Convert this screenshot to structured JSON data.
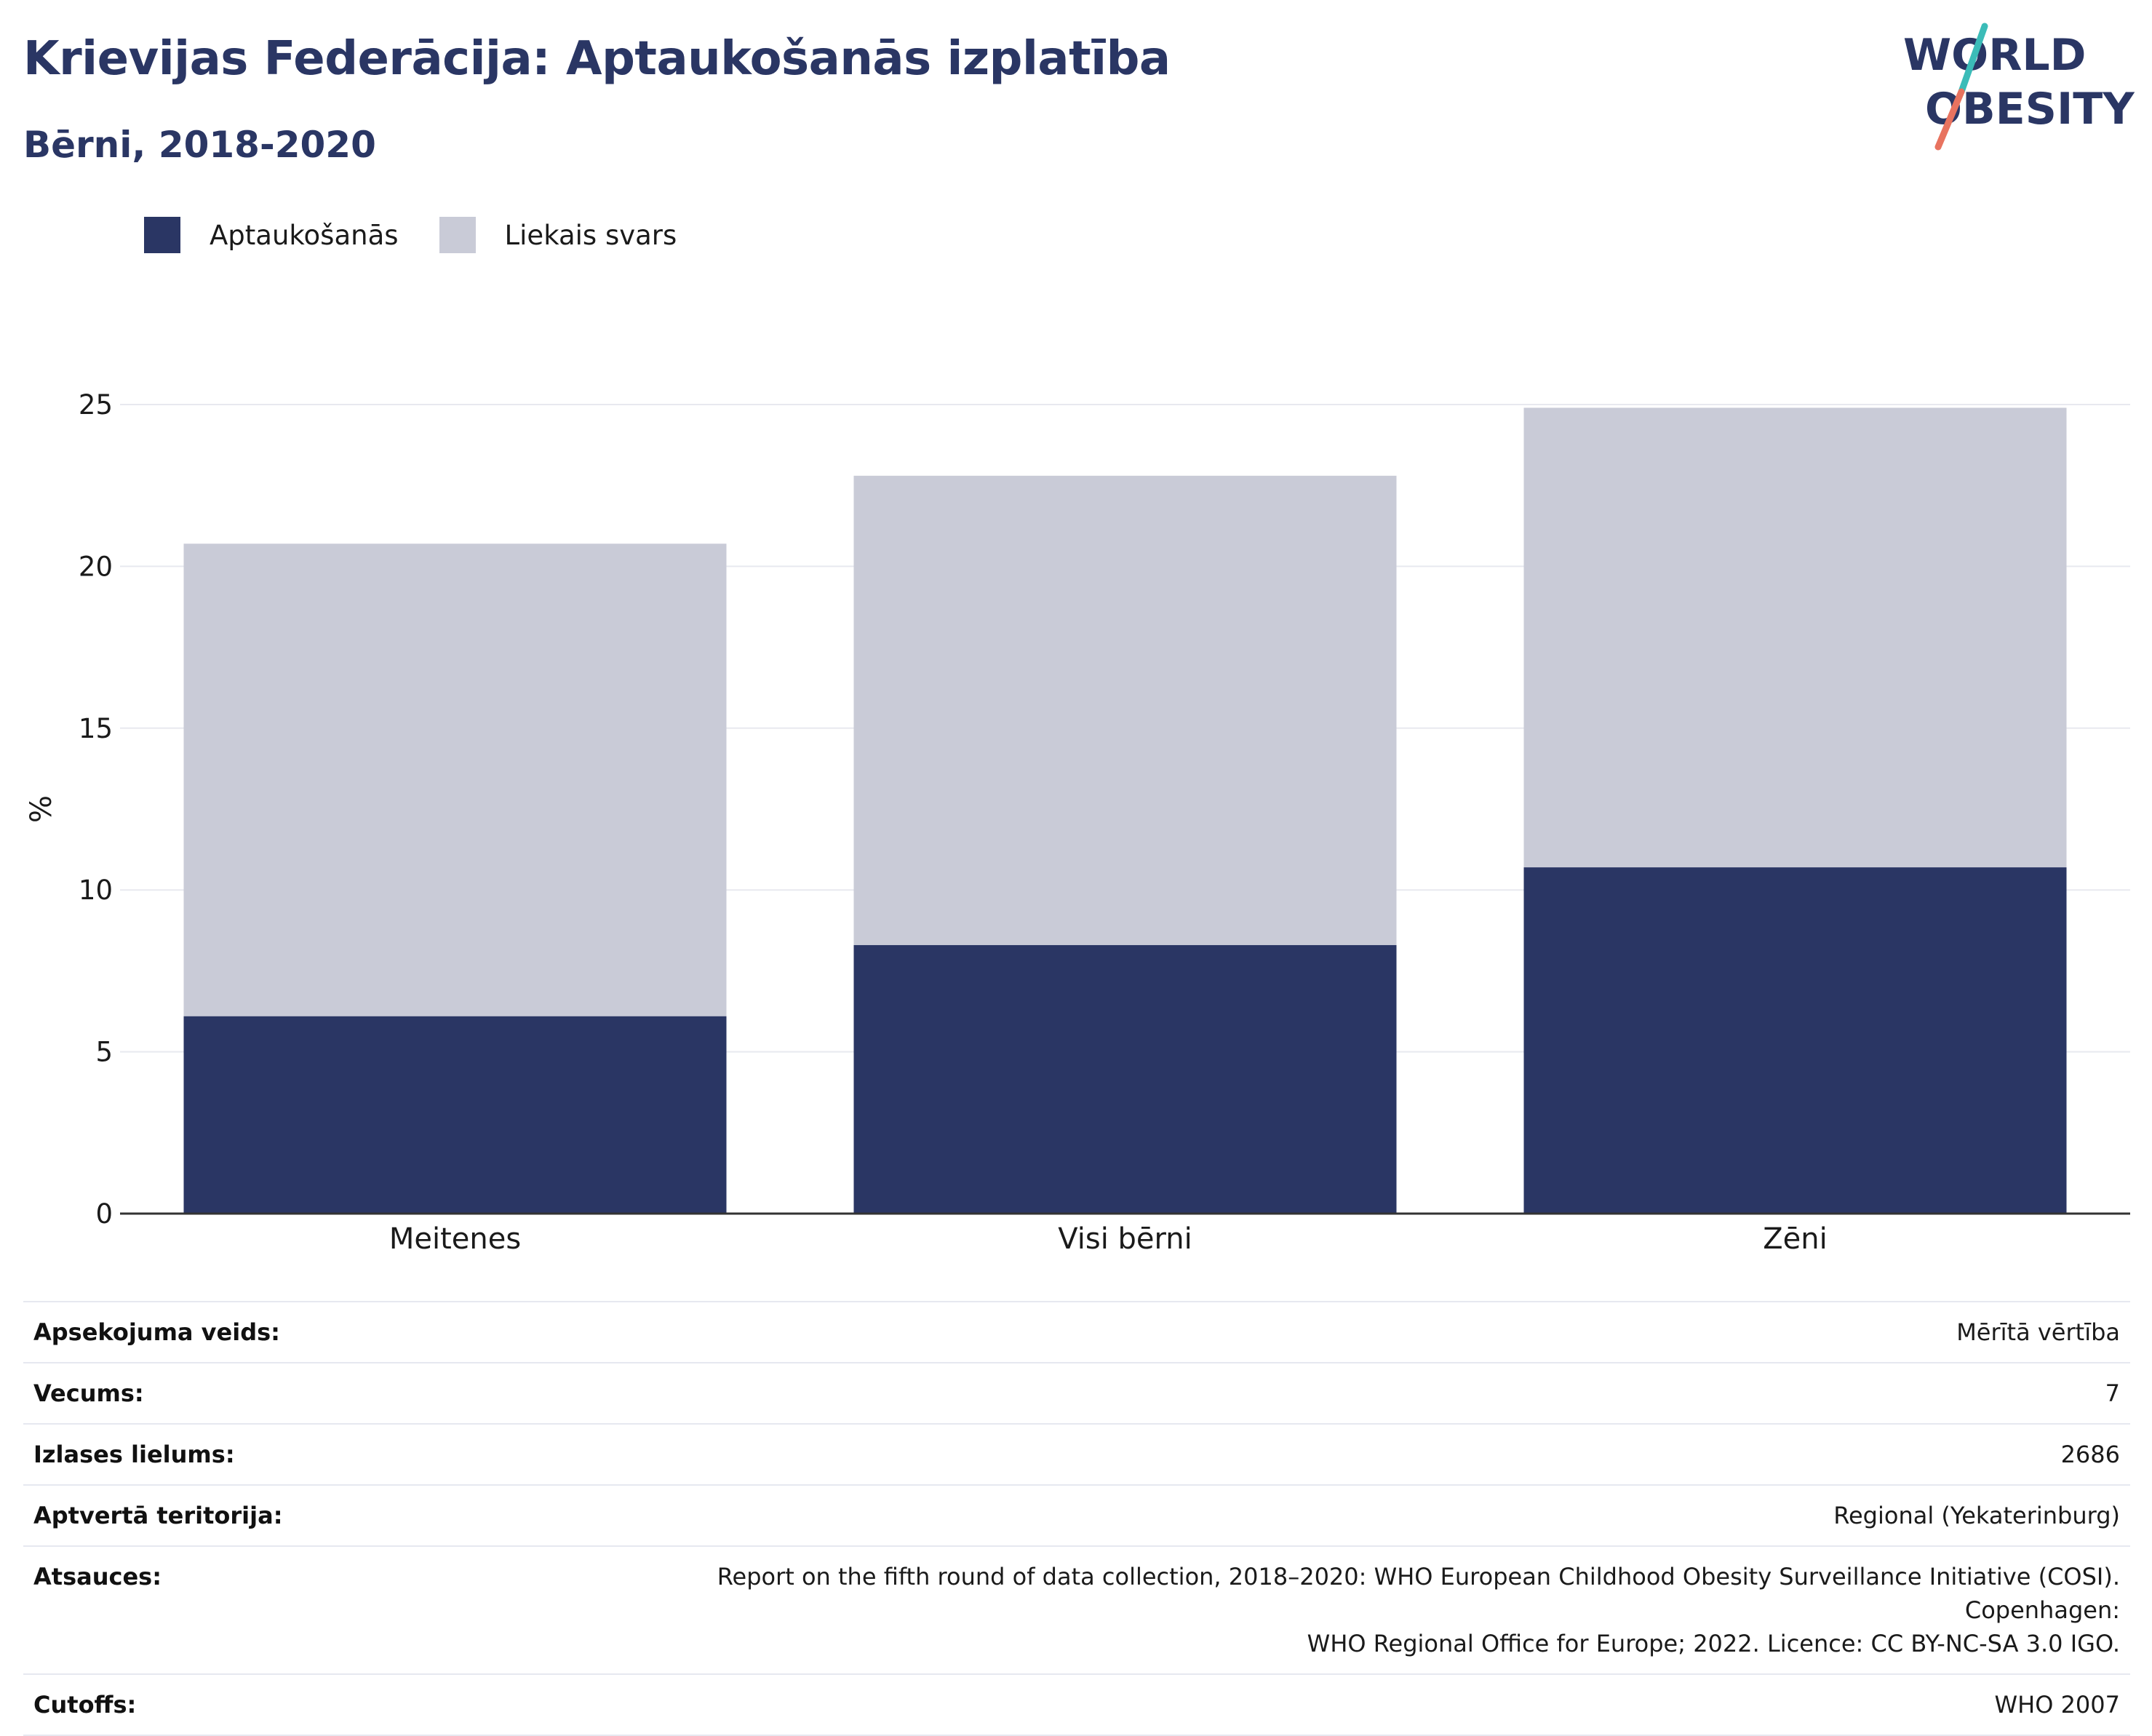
{
  "header": {
    "title": "Krievijas Federācija: Aptaukošanās izplatība",
    "subtitle": "Bērni, 2018-2020"
  },
  "logo": {
    "line1": "WORLD",
    "line2": "OBESITY",
    "colors": {
      "text": "#2a3664",
      "slash_teal": "#3bbcb8",
      "slash_coral": "#e8735f"
    }
  },
  "legend": {
    "items": [
      {
        "label": "Aptaukošanās",
        "color": "#2a3664"
      },
      {
        "label": "Liekais svars",
        "color": "#c9cbd7"
      }
    ]
  },
  "colors": {
    "obesity": "#2a3664",
    "overweight": "#c9cbd7",
    "grid": "#e8e9ef",
    "axis": "#333333"
  },
  "chart_data": {
    "type": "bar",
    "stacked": true,
    "categories": [
      "Meitenes",
      "Visi bērni",
      "Zēni"
    ],
    "series": [
      {
        "name": "Aptaukošanās",
        "values": [
          6.1,
          8.3,
          10.7
        ]
      },
      {
        "name": "Liekais svars",
        "values": [
          14.6,
          14.5,
          14.2
        ]
      }
    ],
    "totals": [
      20.7,
      22.8,
      24.9
    ],
    "title": "Krievijas Federācija: Aptaukošanās izplatība",
    "subtitle": "Bērni, 2018-2020",
    "xlabel": "",
    "ylabel": "%",
    "ylim": [
      0,
      25
    ],
    "yticks": [
      0,
      5,
      10,
      15,
      20,
      25
    ],
    "grid": true,
    "legend_position": "top-left"
  },
  "info": {
    "rows": [
      {
        "label": "Apsekojuma veids:",
        "value": "Mērītā vērtība"
      },
      {
        "label": "Vecums:",
        "value": "7"
      },
      {
        "label": "Izlases lielums:",
        "value": "2686"
      },
      {
        "label": "Aptvertā teritorija:",
        "value": "Regional (Yekaterinburg)"
      },
      {
        "label": "Atsauces:",
        "value_line1": "Report on the fifth round of data collection, 2018–2020: WHO European Childhood Obesity Surveillance Initiative (COSI). Copenhagen:",
        "value_line2": "WHO Regional Office for Europe; 2022. Licence: CC BY-NC-SA 3.0 IGO."
      },
      {
        "label": "Cutoffs:",
        "value": "WHO 2007"
      }
    ]
  }
}
